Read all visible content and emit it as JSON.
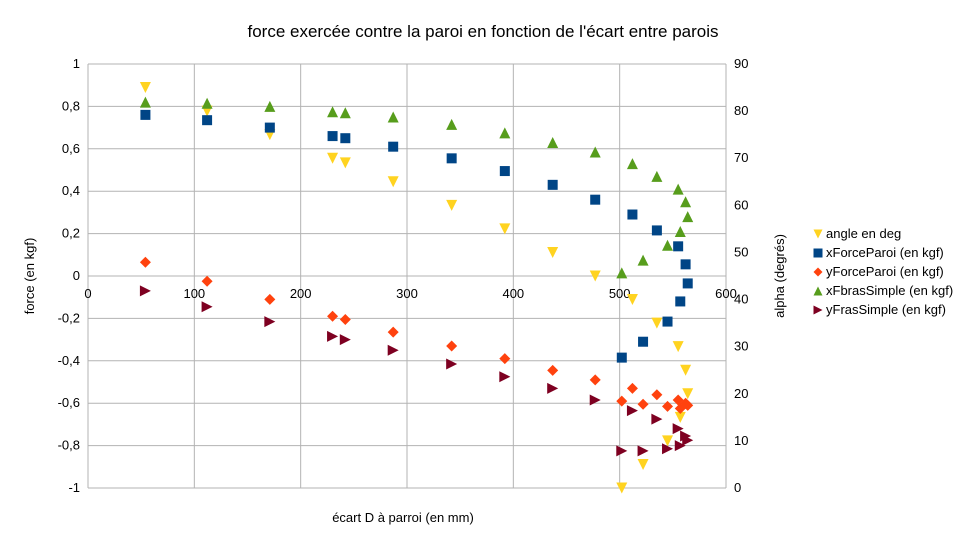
{
  "chart_data": {
    "type": "scatter",
    "title": "force exercée contre la paroi en fonction de l'écart entre parois",
    "xlabel": "écart D à parroi (en mm)",
    "ylabel": "force (en kgf)",
    "y2label": "alpha (degrés)",
    "xlim": [
      0,
      600
    ],
    "ylim": [
      -1,
      1
    ],
    "y2lim": [
      0,
      90
    ],
    "xticks": [
      "0",
      "100",
      "200",
      "300",
      "400",
      "500",
      "600"
    ],
    "yticks": [
      "-1",
      "-0,8",
      "-0,6",
      "-0,4",
      "-0,2",
      "0",
      "0,2",
      "0,4",
      "0,6",
      "0,8",
      "1"
    ],
    "y2ticks": [
      "0",
      "10",
      "20",
      "30",
      "40",
      "50",
      "60",
      "70",
      "80",
      "90"
    ],
    "grid": true,
    "legend_position": "right",
    "series": [
      {
        "name": "angle en deg",
        "axis": "y2",
        "marker": "triangle-down",
        "color": "#ffd320",
        "x": [
          54,
          112,
          171,
          230,
          242,
          287,
          342,
          392,
          437,
          477,
          502,
          512,
          522,
          535,
          545,
          555,
          557,
          562,
          564
        ],
        "y": [
          85,
          80,
          75,
          70,
          69,
          65,
          60,
          55,
          50,
          45,
          0,
          40,
          5,
          35,
          10,
          30,
          15,
          25,
          20
        ]
      },
      {
        "name": "xForceParoi (en kgf)",
        "axis": "y1",
        "marker": "square",
        "color": "#004586",
        "x": [
          54,
          112,
          171,
          230,
          242,
          287,
          342,
          392,
          437,
          477,
          502,
          512,
          522,
          535,
          545,
          555,
          557,
          562,
          564
        ],
        "y": [
          0.76,
          0.735,
          0.7,
          0.66,
          0.65,
          0.61,
          0.555,
          0.495,
          0.43,
          0.36,
          -0.385,
          0.29,
          -0.31,
          0.215,
          -0.215,
          0.14,
          -0.12,
          0.055,
          -0.035
        ]
      },
      {
        "name": "yForceParoi (en kgf)",
        "axis": "y1",
        "marker": "diamond",
        "color": "#ff420e",
        "x": [
          54,
          112,
          171,
          230,
          242,
          287,
          342,
          392,
          437,
          477,
          502,
          512,
          522,
          535,
          545,
          555,
          557,
          562,
          564
        ],
        "y": [
          0.065,
          -0.025,
          -0.11,
          -0.19,
          -0.205,
          -0.265,
          -0.33,
          -0.39,
          -0.445,
          -0.49,
          -0.59,
          -0.53,
          -0.605,
          -0.56,
          -0.615,
          -0.585,
          -0.625,
          -0.6,
          -0.61
        ]
      },
      {
        "name": "xFbrasSimple (en kgf)",
        "axis": "y1",
        "marker": "triangle-up",
        "color": "#579d1c",
        "x": [
          54,
          112,
          171,
          230,
          242,
          287,
          342,
          392,
          437,
          477,
          502,
          512,
          522,
          535,
          545,
          555,
          557,
          562,
          564
        ],
        "y": [
          0.82,
          0.815,
          0.8,
          0.775,
          0.77,
          0.75,
          0.715,
          0.675,
          0.63,
          0.585,
          0.015,
          0.53,
          0.075,
          0.47,
          0.145,
          0.41,
          0.21,
          0.35,
          0.28
        ]
      },
      {
        "name": "yFrasSimple (en kgf)",
        "axis": "y1",
        "marker": "triangle-right",
        "color": "#7e0021",
        "x": [
          54,
          112,
          171,
          230,
          242,
          287,
          342,
          392,
          437,
          477,
          502,
          512,
          522,
          535,
          545,
          555,
          557,
          562,
          564
        ],
        "y": [
          -0.07,
          -0.145,
          -0.215,
          -0.285,
          -0.3,
          -0.35,
          -0.415,
          -0.475,
          -0.53,
          -0.585,
          -0.825,
          -0.635,
          -0.825,
          -0.675,
          -0.815,
          -0.72,
          -0.8,
          -0.755,
          -0.775
        ]
      }
    ]
  }
}
